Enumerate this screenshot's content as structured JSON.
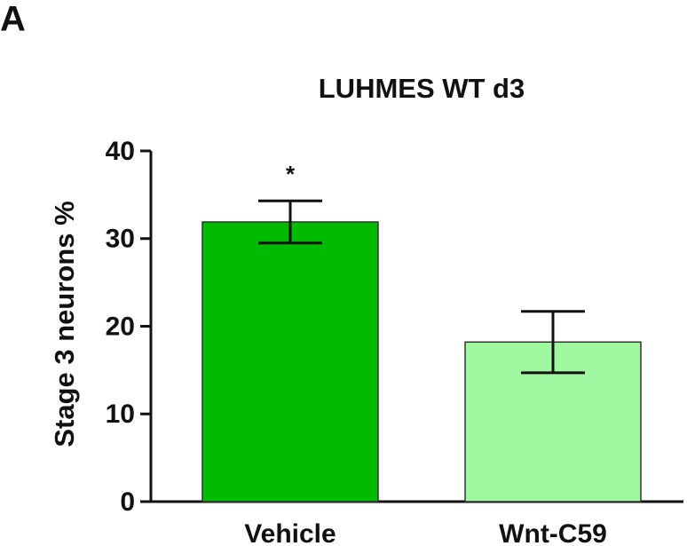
{
  "panel_label": "A",
  "chart_data": {
    "type": "bar",
    "title": "LUHMES WT d3",
    "y_label": "Stage 3 neurons %",
    "categories": [
      "Vehicle",
      "Wnt-C59"
    ],
    "values": [
      31.9,
      18.2
    ],
    "errors": [
      2.4,
      3.5
    ],
    "colors": [
      "#00bb00",
      "#a0f8a0"
    ],
    "annotations": [
      {
        "text": "*",
        "x": "Vehicle"
      }
    ],
    "ylim": [
      0,
      40
    ],
    "yticks": [
      0,
      10,
      20,
      30,
      40
    ],
    "grid": false
  }
}
